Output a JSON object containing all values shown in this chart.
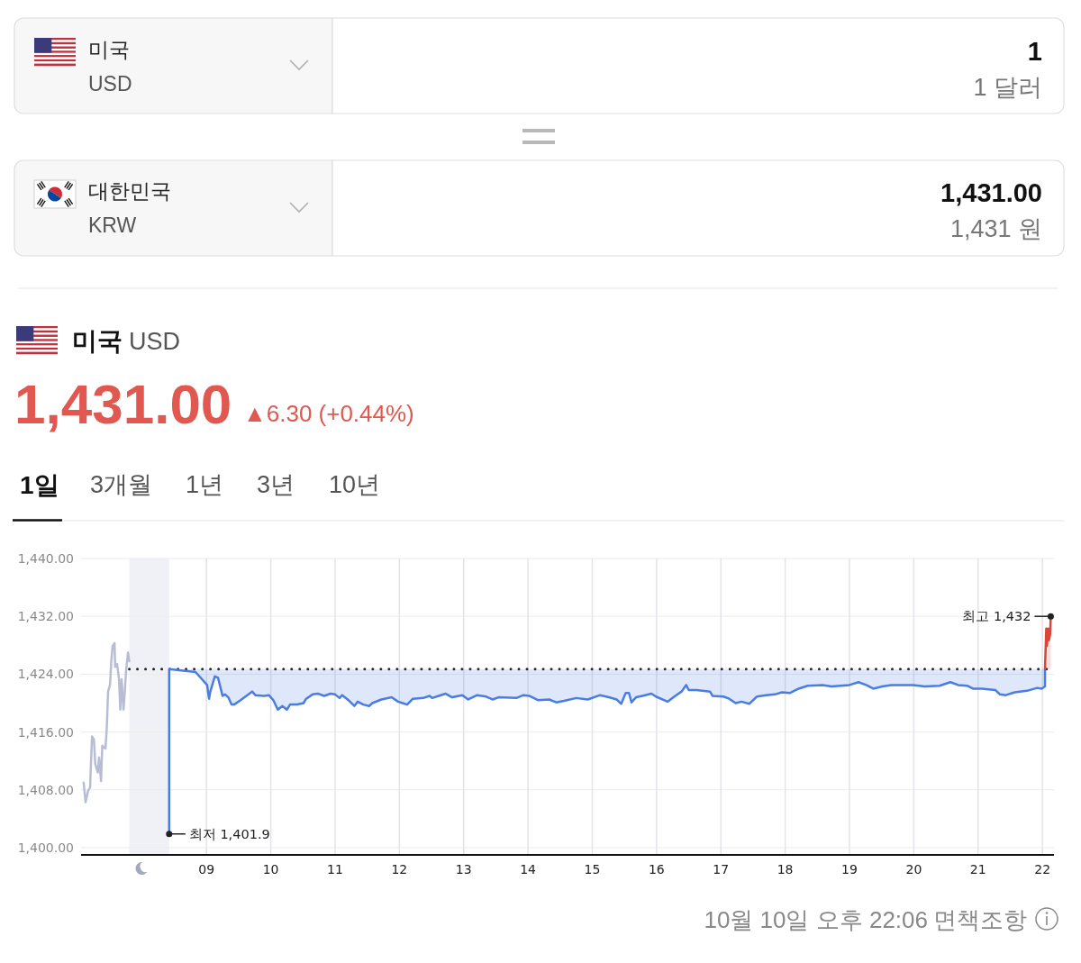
{
  "chart_data": {
    "type": "line",
    "title": "미국",
    "subtitle": "USD",
    "annotations": [
      "미국",
      "USD",
      "1",
      "1 달러",
      "대한민국",
      "KRW",
      "1,431.00",
      "1,431 원",
      "1,431.00",
      "▲6.30 (+0.44%)",
      "1일",
      "3개월",
      "1년",
      "3년",
      "10년",
      "10월 10일 오후 22:06",
      "면책조항",
      {
        "text": "최저 1,401.9",
        "x": 8.42,
        "y": 1401.9
      },
      {
        "text": "최고 1,432",
        "x": 22.13,
        "y": 1432
      }
    ],
    "series": [
      {
        "type": "line",
        "color": "#b9bdd4",
        "x": [
          7.09,
          7.12,
          7.16,
          7.19,
          7.22,
          7.25,
          7.27,
          7.31,
          7.33,
          7.36,
          7.38,
          7.43,
          7.45,
          7.47,
          7.5,
          7.52,
          7.54,
          7.57,
          7.58,
          7.61,
          7.64,
          7.66,
          7.68,
          7.71,
          7.73,
          7.75,
          7.78,
          7.8
        ],
        "values": [
          1409.0,
          1406.3,
          1407.9,
          1408.3,
          1415.4,
          1415.0,
          1411.6,
          1410.4,
          1412.5,
          1409.2,
          1414.1,
          1413.7,
          1416.6,
          1421.6,
          1422.5,
          1425.8,
          1427.9,
          1428.3,
          1425.0,
          1425.4,
          1423.3,
          1419.1,
          1423.3,
          1419.1,
          1421.6,
          1424.5,
          1427.0,
          1425.8
        ]
      },
      {
        "type": "line",
        "color": "#4a7de3",
        "x": [
          8.42,
          8.42,
          8.83,
          9.01,
          9.04,
          9.06,
          9.13,
          9.18,
          9.25,
          9.29,
          9.34,
          9.39,
          9.43,
          9.53,
          9.62,
          9.71,
          9.76,
          9.9,
          9.97,
          10.04,
          10.11,
          10.18,
          10.25,
          10.3,
          10.41,
          10.51,
          10.55,
          10.65,
          10.74,
          10.83,
          10.93,
          11.0,
          11.07,
          11.11,
          11.21,
          11.3,
          11.35,
          11.44,
          11.53,
          11.58,
          11.72,
          11.88,
          11.98,
          12.05,
          12.12,
          12.21,
          12.37,
          12.47,
          12.51,
          12.61,
          12.72,
          12.82,
          12.98,
          13.07,
          13.21,
          13.35,
          13.45,
          13.54,
          13.82,
          13.93,
          14.02,
          14.16,
          14.33,
          14.44,
          14.56,
          14.75,
          14.93,
          15.12,
          15.26,
          15.38,
          15.45,
          15.52,
          15.57,
          15.61,
          15.68,
          15.78,
          15.92,
          15.99,
          16.17,
          16.29,
          16.39,
          16.46,
          16.5,
          16.62,
          16.83,
          16.87,
          17.04,
          17.13,
          17.23,
          17.32,
          17.44,
          17.56,
          17.7,
          17.84,
          17.95,
          18.07,
          18.21,
          18.35,
          18.58,
          18.72,
          19.0,
          19.14,
          19.26,
          19.37,
          19.51,
          19.65,
          19.98,
          20.17,
          20.4,
          20.57,
          20.69,
          20.83,
          20.92,
          21.06,
          21.27,
          21.34,
          21.43,
          21.57,
          21.76,
          21.92,
          21.99,
          22.04,
          22.04
        ],
        "values": [
          1401.9,
          1424.7,
          1424.3,
          1422.5,
          1420.6,
          1421.6,
          1423.7,
          1423.5,
          1421.0,
          1421.2,
          1420.8,
          1419.8,
          1419.8,
          1420.4,
          1421.0,
          1421.6,
          1421.1,
          1421.0,
          1421.1,
          1420.4,
          1419.1,
          1419.6,
          1419.1,
          1419.8,
          1419.8,
          1420.0,
          1420.6,
          1421.2,
          1421.3,
          1421.0,
          1421.3,
          1421.2,
          1420.7,
          1421.1,
          1420.4,
          1419.6,
          1420.2,
          1419.8,
          1419.6,
          1420.0,
          1420.5,
          1420.8,
          1420.2,
          1420.0,
          1419.8,
          1420.6,
          1420.7,
          1421.0,
          1420.7,
          1421.0,
          1421.3,
          1420.8,
          1421.1,
          1420.5,
          1421.1,
          1420.9,
          1420.5,
          1420.8,
          1420.7,
          1421.1,
          1421.0,
          1420.4,
          1420.5,
          1420.1,
          1420.3,
          1420.7,
          1420.5,
          1421.1,
          1420.8,
          1420.5,
          1419.9,
          1421.4,
          1421.4,
          1420.1,
          1420.8,
          1421.0,
          1421.3,
          1420.9,
          1420.2,
          1421.0,
          1421.6,
          1422.5,
          1421.8,
          1421.8,
          1421.6,
          1421.0,
          1420.9,
          1420.6,
          1420.0,
          1420.2,
          1419.9,
          1420.9,
          1421.1,
          1421.2,
          1421.5,
          1421.4,
          1422.0,
          1422.4,
          1422.5,
          1422.3,
          1422.5,
          1422.9,
          1422.5,
          1422.0,
          1422.3,
          1422.5,
          1422.5,
          1422.3,
          1422.4,
          1422.9,
          1422.5,
          1422.4,
          1422.0,
          1422.0,
          1421.8,
          1421.2,
          1421.1,
          1421.5,
          1421.7,
          1422.1,
          1422.0,
          1422.3,
          1424.7
        ],
        "lower": [
          null,
          1424.7,
          1424.3,
          1422.5,
          1420.6,
          1421.6,
          1423.7,
          1423.5,
          1421.0,
          1421.2,
          1420.8,
          1419.8,
          1419.8,
          1420.4,
          1421.0,
          1421.6,
          1421.1,
          1421.0,
          1421.1,
          1420.4,
          1419.1,
          1419.6,
          1419.1,
          1419.8,
          1419.8,
          1420.0,
          1420.6,
          1421.2,
          1421.3,
          1421.0,
          1421.3,
          1421.2,
          1420.7,
          1421.1,
          1420.4,
          1419.6,
          1420.2,
          1419.8,
          1419.6,
          1420.0,
          1420.5,
          1420.8,
          1420.2,
          1420.0,
          1419.8,
          1420.6,
          1420.7,
          1421.0,
          1420.7,
          1421.0,
          1421.3,
          1420.8,
          1421.1,
          1420.5,
          1421.1,
          1420.9,
          1420.5,
          1420.8,
          1420.7,
          1421.1,
          1421.0,
          1420.4,
          1420.5,
          1420.1,
          1420.3,
          1420.7,
          1420.5,
          1421.1,
          1420.8,
          1420.5,
          1419.9,
          1421.4,
          1421.4,
          1420.1,
          1420.8,
          1421.0,
          1421.3,
          1420.9,
          1420.2,
          1421.0,
          1421.6,
          1422.5,
          1421.8,
          1421.8,
          1421.6,
          1421.0,
          1420.9,
          1420.6,
          1420.0,
          1420.2,
          1419.9,
          1420.9,
          1421.1,
          1421.2,
          1421.5,
          1421.4,
          1422.0,
          1422.4,
          1422.5,
          1422.3,
          1422.5,
          1422.9,
          1422.5,
          1422.0,
          1422.3,
          1422.5,
          1422.5,
          1422.3,
          1422.4,
          1422.9,
          1422.5,
          1422.4,
          1422.0,
          1422.0,
          1421.8,
          1421.2,
          1421.1,
          1421.5,
          1421.7,
          1422.1,
          1422.0,
          1422.3,
          1424.7
        ],
        "upper": [
          null,
          1424.7,
          1424.7,
          1424.7,
          1424.7,
          1424.7,
          1424.7,
          1424.7,
          1424.7,
          1424.7,
          1424.7,
          1424.7,
          1424.7,
          1424.7,
          1424.7,
          1424.7,
          1424.7,
          1424.7,
          1424.7,
          1424.7,
          1424.7,
          1424.7,
          1424.7,
          1424.7,
          1424.7,
          1424.7,
          1424.7,
          1424.7,
          1424.7,
          1424.7,
          1424.7,
          1424.7,
          1424.7,
          1424.7,
          1424.7,
          1424.7,
          1424.7,
          1424.7,
          1424.7,
          1424.7,
          1424.7,
          1424.7,
          1424.7,
          1424.7,
          1424.7,
          1424.7,
          1424.7,
          1424.7,
          1424.7,
          1424.7,
          1424.7,
          1424.7,
          1424.7,
          1424.7,
          1424.7,
          1424.7,
          1424.7,
          1424.7,
          1424.7,
          1424.7,
          1424.7,
          1424.7,
          1424.7,
          1424.7,
          1424.7,
          1424.7,
          1424.7,
          1424.7,
          1424.7,
          1424.7,
          1424.7,
          1424.7,
          1424.7,
          1424.7,
          1424.7,
          1424.7,
          1424.7,
          1424.7,
          1424.7,
          1424.7,
          1424.7,
          1424.7,
          1424.7,
          1424.7,
          1424.7,
          1424.7,
          1424.7,
          1424.7,
          1424.7,
          1424.7,
          1424.7,
          1424.7,
          1424.7,
          1424.7,
          1424.7,
          1424.7,
          1424.7,
          1424.7,
          1424.7,
          1424.7,
          1424.7,
          1424.7,
          1424.7,
          1424.7,
          1424.7,
          1424.7,
          1424.7,
          1424.7,
          1424.7,
          1424.7,
          1424.7,
          1424.7,
          1424.7,
          1424.7,
          1424.7,
          1424.7,
          1424.7,
          1424.7,
          1424.7,
          1424.7,
          1424.7,
          1424.7,
          1424.7
        ]
      },
      {
        "type": "line",
        "color": "#d9463a",
        "x": [
          22.04,
          22.06,
          22.07,
          22.09,
          22.1,
          22.12,
          22.13
        ],
        "values": [
          1424.7,
          1430.3,
          1427.9,
          1430.3,
          1428.7,
          1429.5,
          1432.0
        ],
        "lower": [
          1424.7,
          1424.7,
          1424.7,
          1424.7,
          1424.7,
          1424.7,
          1424.7
        ],
        "upper": [
          1424.7,
          1430.3,
          1427.9,
          1430.3,
          1428.7,
          1429.5,
          1432.0
        ]
      }
    ],
    "xlim": [
      7.05,
      22.18
    ],
    "xticks": [
      {
        "value": 9,
        "label": "09"
      },
      10,
      11,
      12,
      13,
      14,
      15,
      16,
      17,
      18,
      19,
      20,
      21,
      22
    ],
    "ylim": [
      1399,
      1440
    ],
    "yticks": [
      {
        "value": 1400,
        "label": "1,400.00"
      },
      {
        "value": 1408,
        "label": "1,408.00"
      },
      {
        "value": 1416,
        "label": "1,416.00"
      },
      {
        "value": 1424,
        "label": "1,424.00"
      },
      {
        "value": 1432,
        "label": "1,432.00"
      },
      {
        "value": 1440,
        "label": "1,440.00"
      }
    ],
    "grid": true,
    "ref_lines": [
      {
        "axis": "y",
        "value": 1424.7,
        "color": "#222222",
        "line_style": "dotted"
      }
    ],
    "bands": [
      {
        "axis": "x",
        "from": 7.8,
        "to": 8.42,
        "color": "#eff1f6"
      }
    ]
  }
}
